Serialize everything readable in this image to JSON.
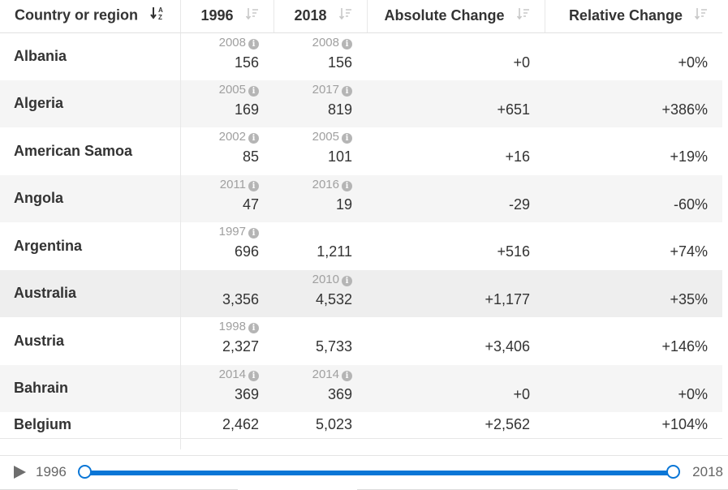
{
  "table": {
    "headers": {
      "country": "Country or region",
      "start_year": "1996",
      "end_year": "2018",
      "absolute": "Absolute Change",
      "relative": "Relative Change"
    },
    "rows": [
      {
        "country": "Albania",
        "start_note": "2008",
        "start_value": "156",
        "end_note": "2008",
        "end_value": "156",
        "absolute": "+0",
        "relative": "+0%"
      },
      {
        "country": "Algeria",
        "start_note": "2005",
        "start_value": "169",
        "end_note": "2017",
        "end_value": "819",
        "absolute": "+651",
        "relative": "+386%"
      },
      {
        "country": "American Samoa",
        "start_note": "2002",
        "start_value": "85",
        "end_note": "2005",
        "end_value": "101",
        "absolute": "+16",
        "relative": "+19%"
      },
      {
        "country": "Angola",
        "start_note": "2011",
        "start_value": "47",
        "end_note": "2016",
        "end_value": "19",
        "absolute": "-29",
        "relative": "-60%"
      },
      {
        "country": "Argentina",
        "start_note": "1997",
        "start_value": "696",
        "end_note": "",
        "end_value": "1,211",
        "absolute": "+516",
        "relative": "+74%"
      },
      {
        "country": "Australia",
        "start_note": "",
        "start_value": "3,356",
        "end_note": "2010",
        "end_value": "4,532",
        "absolute": "+1,177",
        "relative": "+35%"
      },
      {
        "country": "Austria",
        "start_note": "1998",
        "start_value": "2,327",
        "end_note": "",
        "end_value": "5,733",
        "absolute": "+3,406",
        "relative": "+146%"
      },
      {
        "country": "Bahrain",
        "start_note": "2014",
        "start_value": "369",
        "end_note": "2014",
        "end_value": "369",
        "absolute": "+0",
        "relative": "+0%"
      },
      {
        "country": "Belgium",
        "start_note": "",
        "start_value": "2,462",
        "end_note": "",
        "end_value": "5,023",
        "absolute": "+2,562",
        "relative": "+104%"
      }
    ]
  },
  "timeline": {
    "start_year": "1996",
    "end_year": "2018",
    "range_start_fraction": 0,
    "range_end_fraction": 1
  },
  "colors": {
    "accent": "#0a76d6",
    "row_shade": "#f5f5f5",
    "note_text": "#a0a0a0"
  },
  "icons": {
    "country_sort": "sort-alpha-asc-icon",
    "column_sort": "sort-desc-icon",
    "note": "info-icon",
    "play": "play-icon"
  }
}
